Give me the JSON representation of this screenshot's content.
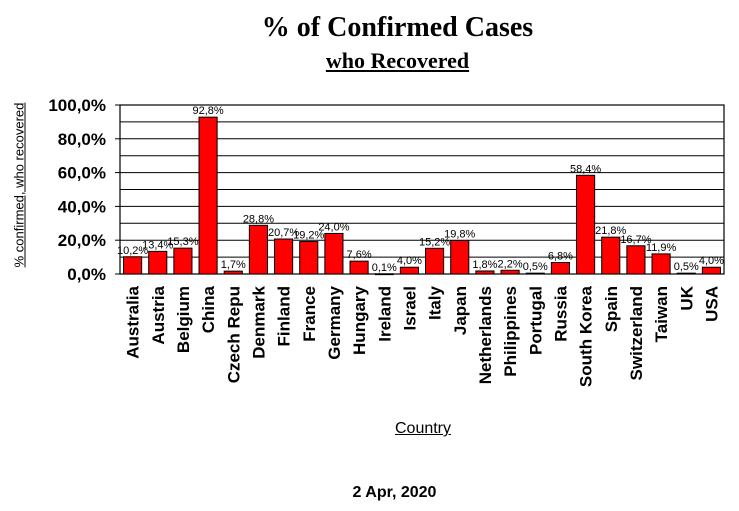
{
  "title": "% of Confirmed Cases",
  "subtitle": "who Recovered",
  "ylabel": "% confirmed, who recovered",
  "xlabel": "Country",
  "footer_date": "2 Apr, 2020",
  "colors": {
    "bar": "#ff0000",
    "bar_stroke": "#000000",
    "grid": "#000000"
  },
  "chart_data": {
    "type": "bar",
    "title": "% of Confirmed Cases",
    "subtitle": "who Recovered",
    "xlabel": "Country",
    "ylabel": "% confirmed, who recovered",
    "ylim": [
      0,
      100
    ],
    "yticks": [
      "0,0%",
      "20,0%",
      "40,0%",
      "60,0%",
      "80,0%",
      "100,0%"
    ],
    "grid": true,
    "categories": [
      "Australia",
      "Austria",
      "Belgium",
      "China",
      "Czech Repu",
      "Denmark",
      "Finland",
      "France",
      "Germany",
      "Hungary",
      "Ireland",
      "Israel",
      "Italy",
      "Japan",
      "Netherlands",
      "Philippines",
      "Portugal",
      "Russia",
      "South Korea",
      "Spain",
      "Switzerland",
      "Taiwan",
      "UK",
      "USA"
    ],
    "values": [
      10.2,
      13.4,
      15.3,
      92.8,
      1.7,
      28.8,
      20.7,
      19.2,
      24.0,
      7.6,
      0.1,
      4.0,
      15.2,
      19.8,
      1.8,
      2.2,
      0.5,
      6.8,
      58.4,
      21.8,
      16.7,
      11.9,
      0.5,
      4.0
    ],
    "data_labels": [
      "10,2%",
      "13,4%",
      "15,3%",
      "92,8%",
      "1,7%",
      "28,8%",
      "20,7%",
      "19,2%",
      "24,0%",
      "7,6%",
      "0,1%",
      "4,0%",
      "15,2%",
      "19,8%",
      "1,8%",
      "2,2%",
      "0,5%",
      "6,8%",
      "58,4%",
      "21,8%",
      "16,7%",
      "11,9%",
      "0,5%",
      "4,0%"
    ]
  }
}
